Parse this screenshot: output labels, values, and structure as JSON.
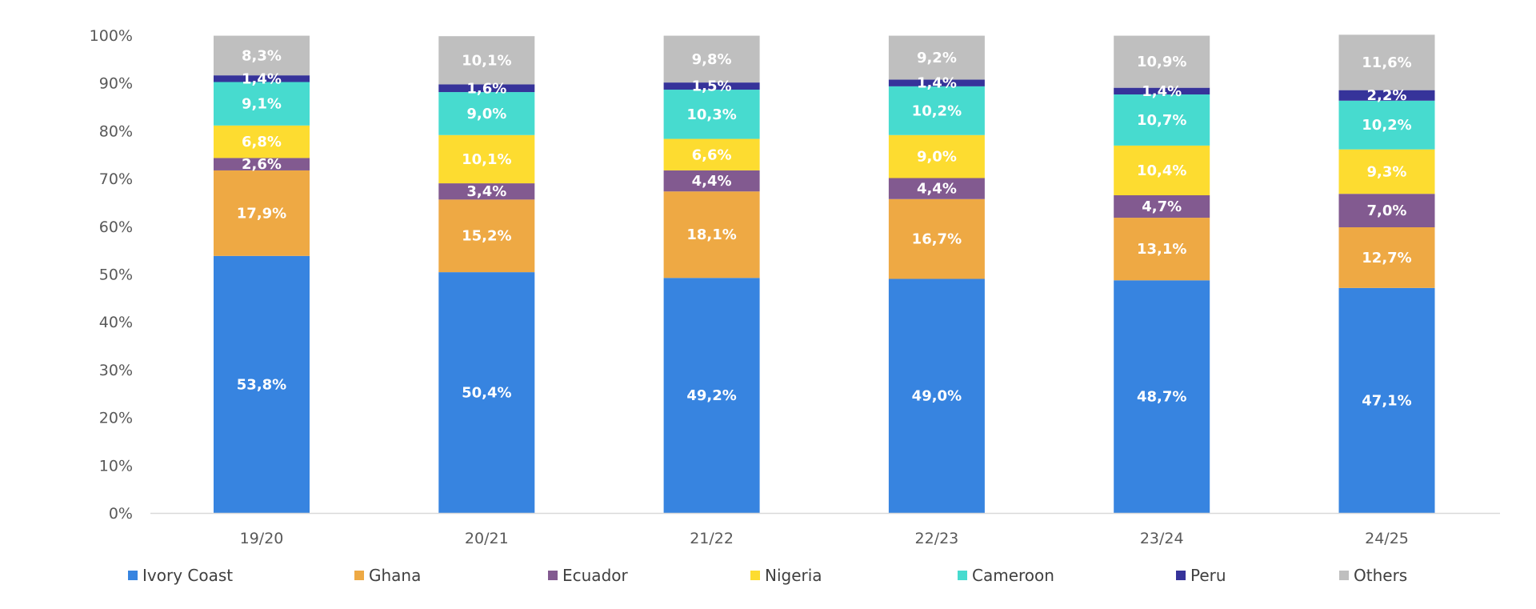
{
  "chart_data": {
    "type": "bar",
    "stacked": true,
    "categories": [
      "19/20",
      "20/21",
      "21/22",
      "22/23",
      "23/24",
      "24/25"
    ],
    "series": [
      {
        "name": "Ivory Coast",
        "color": "#3784E0",
        "values": [
          53.8,
          50.4,
          49.2,
          49.0,
          48.7,
          47.1
        ],
        "labels": [
          "53,8%",
          "50,4%",
          "49,2%",
          "49,0%",
          "48,7%",
          "47,1%"
        ]
      },
      {
        "name": "Ghana",
        "color": "#EEA944",
        "values": [
          17.9,
          15.2,
          18.1,
          16.7,
          13.1,
          12.7
        ],
        "labels": [
          "17,9%",
          "15,2%",
          "18,1%",
          "16,7%",
          "13,1%",
          "12,7%"
        ]
      },
      {
        "name": "Ecuador",
        "color": "#825A90",
        "values": [
          2.6,
          3.4,
          4.4,
          4.4,
          4.7,
          7.0
        ],
        "labels": [
          "2,6%",
          "3,4%",
          "4,4%",
          "4,4%",
          "4,7%",
          "7,0%"
        ]
      },
      {
        "name": "Nigeria",
        "color": "#FDDC30",
        "values": [
          6.8,
          10.1,
          6.6,
          9.0,
          10.4,
          9.3
        ],
        "labels": [
          "6,8%",
          "10,1%",
          "6,6%",
          "9,0%",
          "10,4%",
          "9,3%"
        ]
      },
      {
        "name": "Cameroon",
        "color": "#47DBCF",
        "values": [
          9.1,
          9.0,
          10.3,
          10.2,
          10.7,
          10.2
        ],
        "labels": [
          "9,1%",
          "9,0%",
          "10,3%",
          "10,2%",
          "10,7%",
          "10,2%"
        ]
      },
      {
        "name": "Peru",
        "color": "#36339A",
        "values": [
          1.4,
          1.6,
          1.5,
          1.4,
          1.4,
          2.2
        ],
        "labels": [
          "1,4%",
          "1,6%",
          "1,5%",
          "1,4%",
          "1,4%",
          "2,2%"
        ]
      },
      {
        "name": "Others",
        "color": "#BFBFBF",
        "values": [
          8.3,
          10.1,
          9.8,
          9.2,
          10.9,
          11.6
        ],
        "labels": [
          "8,3%",
          "10,1%",
          "9,8%",
          "9,2%",
          "10,9%",
          "11,6%"
        ]
      }
    ],
    "yticks": [
      "0%",
      "10%",
      "20%",
      "30%",
      "40%",
      "50%",
      "60%",
      "70%",
      "80%",
      "90%",
      "100%"
    ],
    "ylim": [
      0,
      100
    ],
    "grid": false,
    "legend_position": "bottom"
  }
}
